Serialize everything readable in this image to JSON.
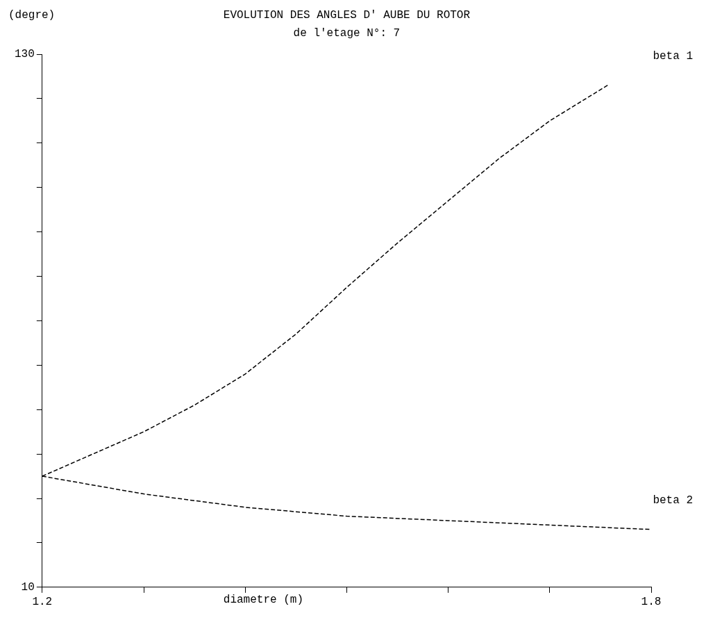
{
  "chart_data": {
    "type": "line",
    "title": "EVOLUTION DES ANGLES D' AUBE DU ROTOR",
    "subtitle": "de l'etage N°: 7",
    "xlabel": "diametre (m)",
    "ylabel": "(degre)",
    "series": [
      {
        "name": "beta 1",
        "color": "#000000",
        "x": [
          1.2,
          1.25,
          1.3,
          1.35,
          1.4,
          1.45,
          1.5,
          1.55,
          1.6,
          1.65,
          1.7,
          1.757
        ],
        "values": [
          35,
          40,
          45,
          51,
          58,
          67,
          77.5,
          87.5,
          97,
          106.5,
          115,
          123
        ]
      },
      {
        "name": "beta 2",
        "color": "#000000",
        "x": [
          1.2,
          1.3,
          1.4,
          1.5,
          1.6,
          1.7,
          1.8
        ],
        "values": [
          35,
          31,
          28,
          26,
          25,
          24,
          23
        ]
      }
    ],
    "xlim": [
      1.2,
      1.8
    ],
    "xticks": [
      1.2,
      {
        "value": 1.3,
        "label": null
      },
      {
        "value": 1.4,
        "label": null
      },
      {
        "value": 1.5,
        "label": null
      },
      {
        "value": 1.6,
        "label": null
      },
      {
        "value": 1.7,
        "label": null
      },
      1.8
    ],
    "ylim": [
      10,
      130
    ],
    "yticks": [
      10,
      {
        "value": 20,
        "label": null
      },
      {
        "value": 30,
        "label": null
      },
      {
        "value": 40,
        "label": null
      },
      {
        "value": 50,
        "label": null
      },
      {
        "value": 60,
        "label": null
      },
      {
        "value": 70,
        "label": null
      },
      {
        "value": 80,
        "label": null
      },
      {
        "value": 90,
        "label": null
      },
      {
        "value": 100,
        "label": null
      },
      {
        "value": 110,
        "label": null
      },
      {
        "value": 120,
        "label": null
      },
      130
    ],
    "grid": false,
    "legend": false,
    "marker": "none",
    "line_style": "dashed"
  }
}
